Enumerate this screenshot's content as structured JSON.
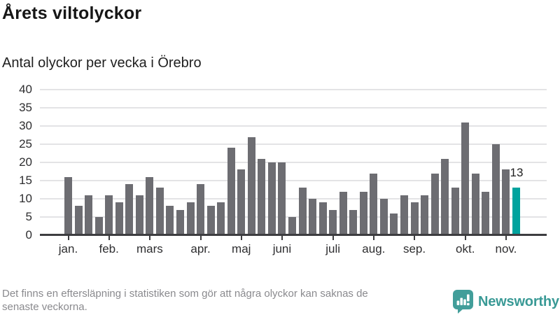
{
  "header": {
    "title": "Årets viltolyckor",
    "subtitle": "Antal olyckor per vecka i Örebro"
  },
  "chart_data": {
    "type": "bar",
    "title": "Årets viltolyckor",
    "subtitle": "Antal olyckor per vecka i Örebro",
    "x_unit": "vecka",
    "values": [
      16,
      8,
      11,
      5,
      11,
      9,
      14,
      11,
      16,
      13,
      8,
      7,
      9,
      14,
      8,
      9,
      24,
      18,
      27,
      21,
      20,
      20,
      5,
      13,
      10,
      9,
      7,
      12,
      7,
      12,
      17,
      10,
      6,
      11,
      9,
      11,
      17,
      21,
      13,
      31,
      17,
      12,
      25,
      18,
      13
    ],
    "highlight_index": 44,
    "highlight_label": "13",
    "months": [
      {
        "label": "jan.",
        "week": 0
      },
      {
        "label": "feb.",
        "week": 4
      },
      {
        "label": "mars",
        "week": 8
      },
      {
        "label": "apr.",
        "week": 13
      },
      {
        "label": "maj",
        "week": 17
      },
      {
        "label": "juni",
        "week": 21
      },
      {
        "label": "juli",
        "week": 26
      },
      {
        "label": "aug.",
        "week": 30
      },
      {
        "label": "sep.",
        "week": 34
      },
      {
        "label": "okt.",
        "week": 39
      },
      {
        "label": "nov.",
        "week": 43
      }
    ],
    "yticks": [
      0,
      5,
      10,
      15,
      20,
      25,
      30,
      35,
      40
    ],
    "ylim": [
      0,
      40
    ],
    "grid": true,
    "legend": false,
    "colors": {
      "bar": "#6d6d72",
      "highlight": "#00a39e",
      "grid": "#e3e3e5",
      "axis": "#3d3d40"
    }
  },
  "footer": {
    "line1": "Det finns en eftersläpning i statistiken som gör att några olyckor kan saknas de",
    "line2": "senaste veckorna."
  },
  "logo": {
    "text": "Newsworthy",
    "color": "#3a9a96",
    "icon_color": "#429e9a"
  }
}
